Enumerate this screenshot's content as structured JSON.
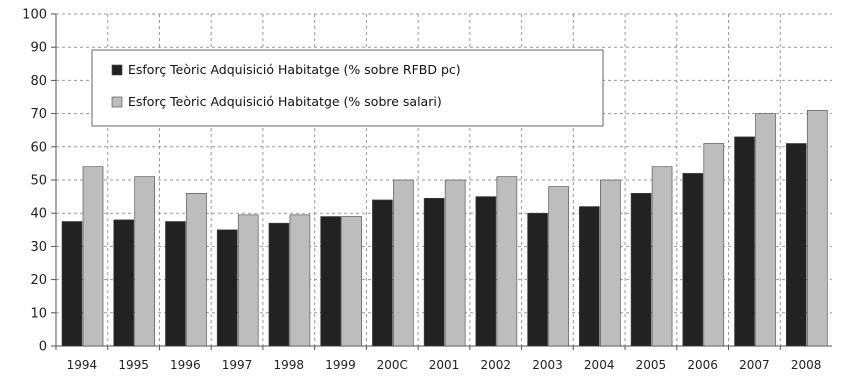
{
  "chart_data": {
    "type": "bar",
    "categories": [
      "1994",
      "1995",
      "1996",
      "1997",
      "1998",
      "1999",
      "2000",
      "2001",
      "2002",
      "2003",
      "2004",
      "2005",
      "2006",
      "2007",
      "2008"
    ],
    "category_labels": [
      "1994",
      "1995",
      "1996",
      "1997",
      "1998",
      "1999",
      "200C",
      "2001",
      "2002",
      "2003",
      "2004",
      "2005",
      "2006",
      "2007",
      "2008"
    ],
    "series": [
      {
        "name": "Esforç Teòric Adquisició Habitatge (% sobre RFBD pc)",
        "color": "#222222",
        "values": [
          37.5,
          38,
          37.5,
          35,
          37,
          39,
          44,
          44.5,
          45,
          40,
          42,
          46,
          52,
          63,
          61
        ]
      },
      {
        "name": "Esforç Teòric Adquisició Habitatge (% sobre salari)",
        "color": "#bdbdbd",
        "values": [
          54,
          51,
          46,
          39.5,
          39.5,
          39,
          50,
          50,
          51,
          48,
          50,
          54,
          61,
          70,
          71
        ]
      }
    ],
    "title": "",
    "xlabel": "",
    "ylabel": "",
    "ylim": [
      0,
      100
    ],
    "yticks": [
      0,
      10,
      20,
      30,
      40,
      50,
      60,
      70,
      80,
      90,
      100
    ],
    "grid": true,
    "legend_position": "top-left"
  }
}
